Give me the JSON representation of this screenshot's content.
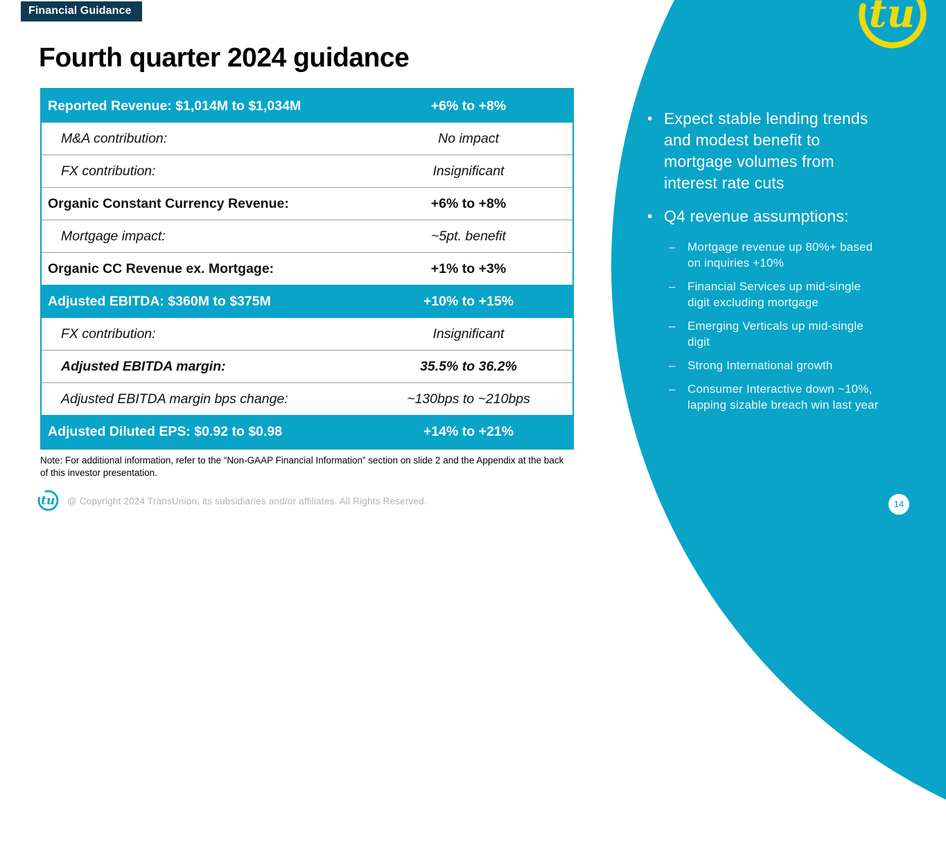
{
  "slide": {
    "tag": "Financial Guidance",
    "title": "Fourth quarter 2024 guidance",
    "note": "Note: For additional information, refer to the “Non-GAAP Financial Information” section on slide 2 and the Appendix at the back\nof this investor presentation.",
    "copyright": "@ Copyright 2024 TransUnion, its subsidiaries and/or affiliates.  All Rights Reserved.",
    "page_number": "14"
  },
  "branding": {
    "logo_text": "tu"
  },
  "colors": {
    "teal": "#09a4c7",
    "navy": "#0e3a53",
    "yellow": "#edd90f"
  },
  "table": {
    "rows": [
      {
        "label": "Reported Revenue: $1,014M to $1,034M",
        "value": "+6% to +8%",
        "style": "header"
      },
      {
        "label": "M&A contribution:",
        "value": "No impact",
        "style": "italic"
      },
      {
        "label": "FX contribution:",
        "value": "Insignificant",
        "style": "italic"
      },
      {
        "label": "Organic Constant Currency Revenue:",
        "value": "+6% to +8%",
        "style": "bold"
      },
      {
        "label": "Mortgage impact:",
        "value": "~5pt. benefit",
        "style": "italic"
      },
      {
        "label": "Organic CC Revenue ex. Mortgage:",
        "value": "+1% to +3%",
        "style": "bold"
      },
      {
        "label": "Adjusted EBITDA: $360M to $375M",
        "value": "+10% to +15%",
        "style": "header"
      },
      {
        "label": "FX contribution:",
        "value": "Insignificant",
        "style": "italic"
      },
      {
        "label": "Adjusted EBITDA margin:",
        "value": "35.5% to 36.2%",
        "style": "bolditalic"
      },
      {
        "label": "Adjusted EBITDA margin bps change:",
        "value": "~130bps to ~210bps",
        "style": "italic"
      },
      {
        "label": "Adjusted Diluted EPS: $0.92 to $0.98",
        "value": "+14% to +21%",
        "style": "header"
      }
    ]
  },
  "panel": {
    "bullets": [
      {
        "text": "Expect stable lending trends\nand modest benefit to\nmortgage volumes from\ninterest rate cuts",
        "sub": []
      },
      {
        "text": "Q4 revenue assumptions:",
        "sub": [
          "Mortgage revenue up 80%+ based\non inquiries +10%",
          "Financial Services up mid-single\ndigit excluding mortgage",
          "Emerging Verticals up mid-single\ndigit",
          "Strong International growth",
          "Consumer Interactive down ~10%,\nlapping sizable breach win last year"
        ]
      }
    ]
  }
}
